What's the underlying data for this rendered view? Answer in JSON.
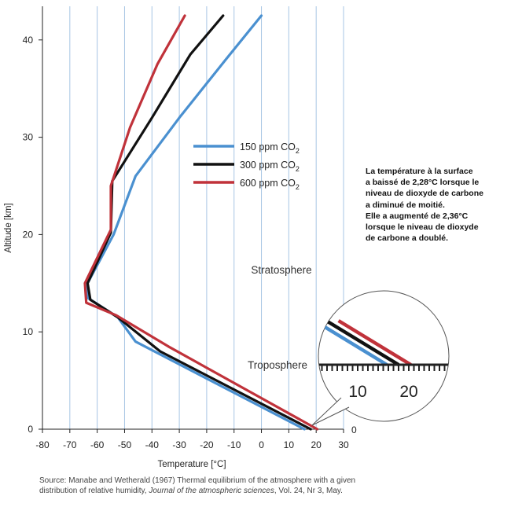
{
  "chart_data": {
    "type": "line",
    "xlabel": "Temperature [°C]",
    "ylabel": "Altitude [km]",
    "xlim": [
      -80,
      30
    ],
    "ylim": [
      0,
      43
    ],
    "x_ticks": [
      -80,
      -70,
      -60,
      -50,
      -40,
      -30,
      -20,
      -10,
      0,
      10,
      20,
      30
    ],
    "y_ticks": [
      0,
      10,
      20,
      30,
      40
    ],
    "grid": "vertical lines every 10 °C",
    "legend_position": "upper-middle",
    "series": [
      {
        "name_prefix": "150 ppm CO",
        "name_sub": "2",
        "color": "#4a90d0",
        "points": [
          [
            15.7,
            0
          ],
          [
            -46,
            9
          ],
          [
            -52.5,
            11.5
          ],
          [
            -63.5,
            13.5
          ],
          [
            -63.5,
            15
          ],
          [
            -54,
            20
          ],
          [
            -46,
            26
          ],
          [
            -30,
            32
          ],
          [
            -13,
            38
          ],
          [
            0,
            42.5
          ]
        ]
      },
      {
        "name_prefix": "300 ppm CO",
        "name_sub": "2",
        "color": "#111111",
        "points": [
          [
            18,
            0
          ],
          [
            -37,
            8
          ],
          [
            -52.5,
            11.5
          ],
          [
            -62.5,
            13.3
          ],
          [
            -63.5,
            15
          ],
          [
            -55,
            20.2
          ],
          [
            -54.5,
            25.5
          ],
          [
            -40,
            32
          ],
          [
            -26,
            38.5
          ],
          [
            -14,
            42.5
          ]
        ]
      },
      {
        "name_prefix": "600 ppm CO",
        "name_sub": "2",
        "color": "#c0323a",
        "points": [
          [
            20.4,
            0
          ],
          [
            -34,
            8.5
          ],
          [
            -53,
            11.7
          ],
          [
            -64,
            13
          ],
          [
            -64.5,
            15
          ],
          [
            -55,
            20.5
          ],
          [
            -55,
            25
          ],
          [
            -48,
            31
          ],
          [
            -38,
            37.5
          ],
          [
            -28,
            42.5
          ]
        ]
      }
    ],
    "annotations": {
      "stratosphere": "Stratosphere",
      "troposphere": "Troposphere",
      "inset": {
        "label_10": "10",
        "label_20": "20",
        "zero_label": "0",
        "description": "magnified surface temperatures around 10–20 °C"
      },
      "note_lines": [
        "La température à la surface",
        "a baissé de 2,28°C lorsque le",
        "niveau de dioxyde de carbone",
        "a diminué de moitié.",
        "Elle a augmenté de 2,36°C",
        "lorsque le niveau de dioxyde",
        "de carbone a doublé."
      ]
    }
  },
  "source": {
    "line1": "Source: Manabe and Wetherald (1967) Thermal equilibrium of the atmosphere with a given",
    "line2_prefix": "distribution of relative humidity, ",
    "line2_journal": "Journal of the atmospheric sciences",
    "line2_suffix": ", Vol. 24, Nr 3, May."
  }
}
